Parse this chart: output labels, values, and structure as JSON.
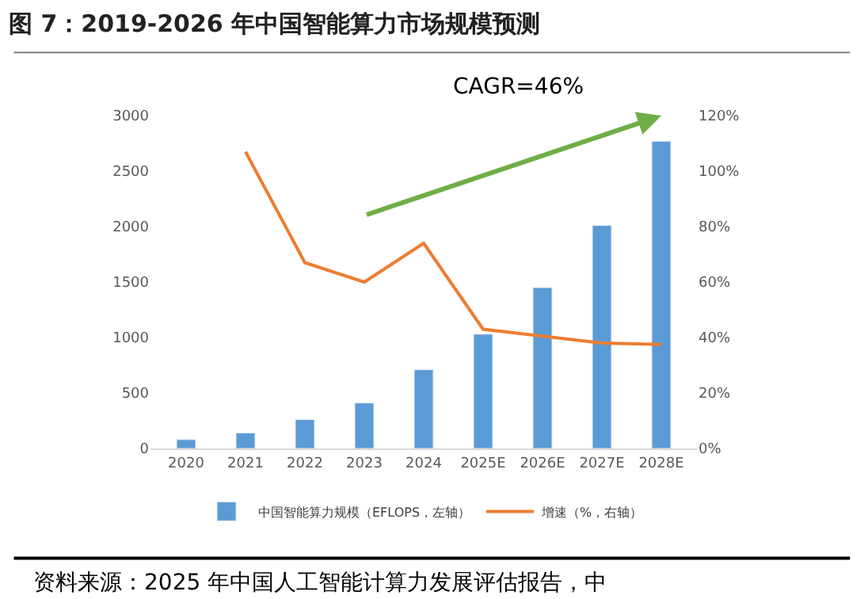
{
  "chart_data": {
    "type": "bar",
    "title": "图 7：2019-2026 年中国智能算力市场规模预测",
    "categories": [
      "2020",
      "2021",
      "2022",
      "2023",
      "2024",
      "2025E",
      "2026E",
      "2027E",
      "2028E"
    ],
    "series": [
      {
        "name": "中国智能算力规模（EFLOPS，左轴）",
        "color": "#5b9bd5",
        "values": [
          80,
          140,
          260,
          410,
          710,
          1030,
          1450,
          2010,
          2770
        ]
      },
      {
        "name": "增速（%，右轴）",
        "color": "#ed7d31",
        "type": "line",
        "axis": "y2",
        "values": [
          null,
          107,
          67,
          60,
          74,
          43,
          40.5,
          38,
          37.5
        ]
      }
    ],
    "ylim": [
      0,
      3000
    ],
    "yticks": [
      0,
      500,
      1000,
      1500,
      2000,
      2500,
      3000
    ],
    "y2lim": [
      0,
      120
    ],
    "y2ticks": [
      {
        "value": 0,
        "label": "0%"
      },
      {
        "value": 20,
        "label": "20%"
      },
      {
        "value": 40,
        "label": "40%"
      },
      {
        "value": 60,
        "label": "60%"
      },
      {
        "value": 80,
        "label": "80%"
      },
      {
        "value": 100,
        "label": "100%"
      },
      {
        "value": 120,
        "label": "120%"
      }
    ],
    "annotations": [
      "CAGR=46%",
      "资料来源：2025 年中国人工智能计算力发展评估报告，中"
    ],
    "legend": "bottom",
    "marker": "none",
    "line_style": "solid"
  }
}
